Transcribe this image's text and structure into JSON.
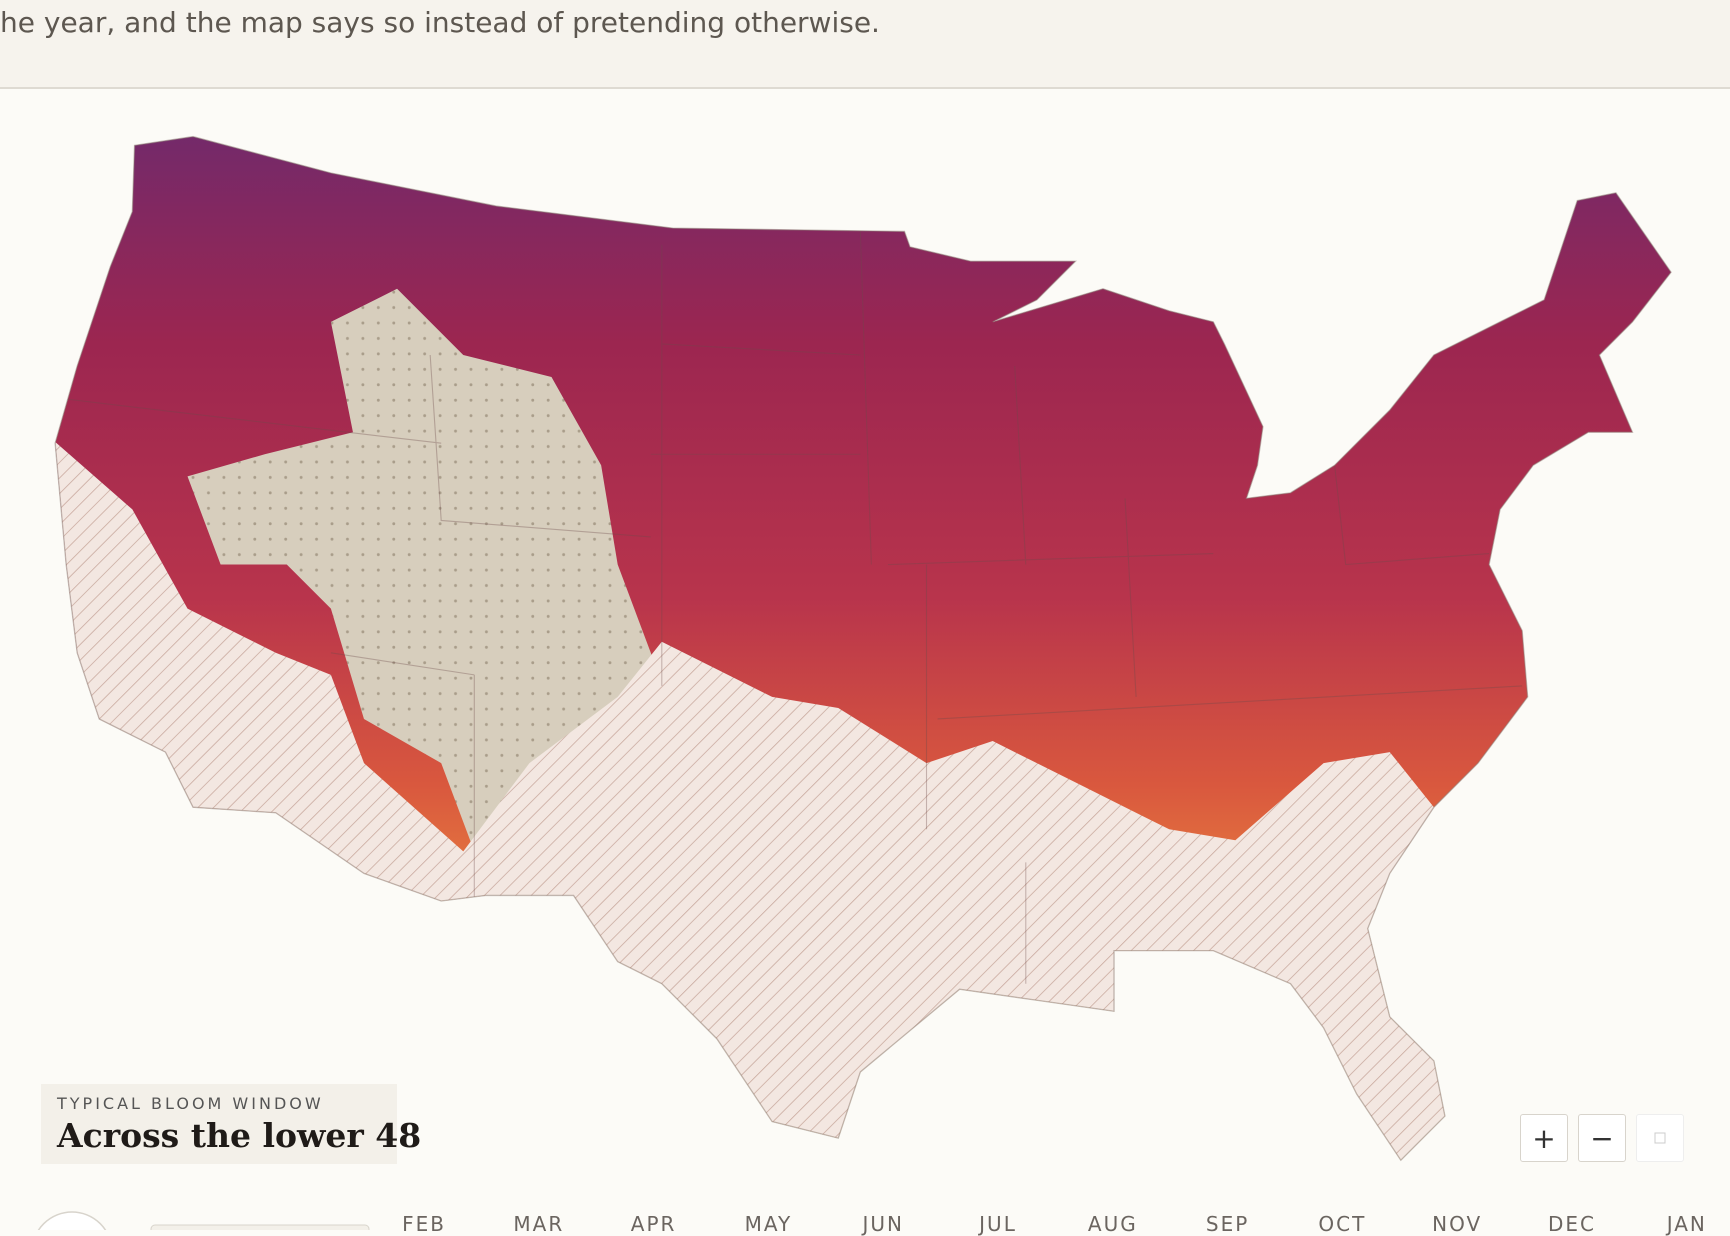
{
  "header": {
    "text": "he year, and the map says so instead of pretending otherwise."
  },
  "legend": {
    "label": "TYPICAL BLOOM WINDOW",
    "title": "Across the lower 48"
  },
  "controls": {
    "zoom_in": "+",
    "zoom_out": "−"
  },
  "timeline": {
    "months": [
      "FEB",
      "MAR",
      "APR",
      "MAY",
      "JUN",
      "JUL",
      "AUG",
      "SEP",
      "OCT",
      "NOV",
      "DEC",
      "JAN"
    ]
  }
}
